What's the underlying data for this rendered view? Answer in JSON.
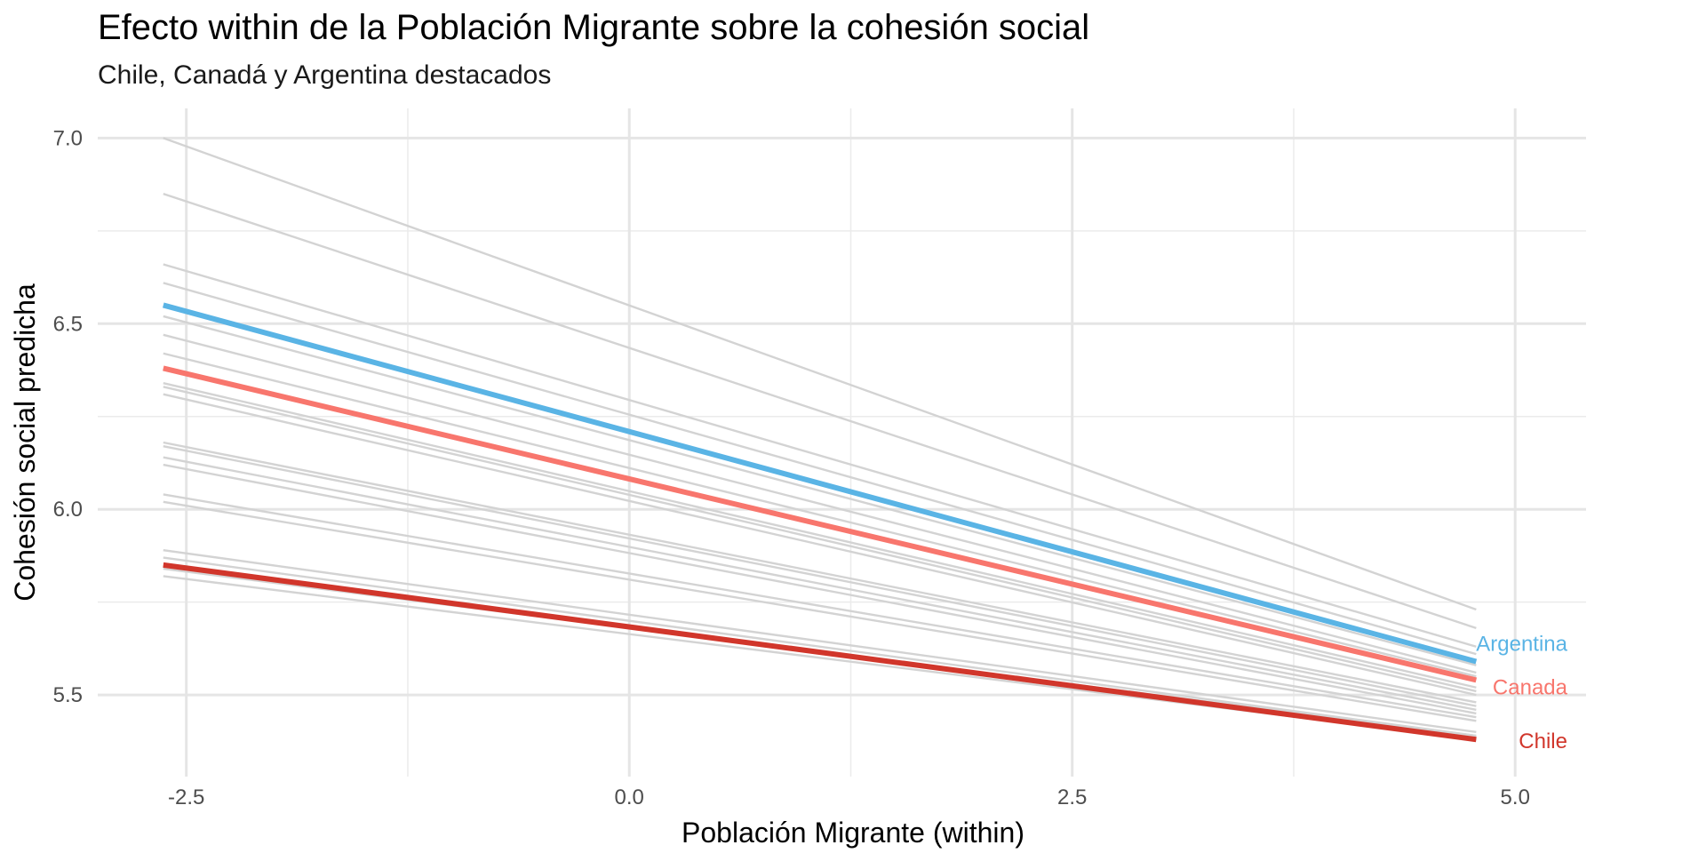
{
  "chart_data": {
    "type": "line",
    "title": "Efecto within de la Población Migrante sobre la cohesión social",
    "subtitle": "Chile, Canadá y Argentina destacados",
    "xlabel": "Población Migrante (within)",
    "ylabel": "Cohesión social predicha",
    "xlim": [
      -3.0,
      5.4
    ],
    "ylim": [
      5.28,
      7.08
    ],
    "x_ticks": [
      -2.5,
      0.0,
      2.5,
      5.0
    ],
    "x_tick_labels": [
      "-2.5",
      "0.0",
      "2.5",
      "5.0"
    ],
    "y_ticks": [
      5.5,
      6.0,
      6.5,
      7.0
    ],
    "y_tick_labels": [
      "5.5",
      "6.0",
      "6.5",
      "7.0"
    ],
    "grid": true,
    "legend": "none (direct labels at line ends)",
    "x": [
      -2.63,
      4.78
    ],
    "background_series_color": "#d3d3d3",
    "background_series": [
      {
        "values": [
          7.0,
          5.73
        ]
      },
      {
        "values": [
          6.85,
          5.68
        ]
      },
      {
        "values": [
          6.66,
          5.63
        ]
      },
      {
        "values": [
          6.61,
          5.61
        ]
      },
      {
        "values": [
          6.52,
          5.58
        ]
      },
      {
        "values": [
          6.47,
          5.56
        ]
      },
      {
        "values": [
          6.42,
          5.55
        ]
      },
      {
        "values": [
          6.34,
          5.52
        ]
      },
      {
        "values": [
          6.33,
          5.51
        ]
      },
      {
        "values": [
          6.31,
          5.5
        ]
      },
      {
        "values": [
          6.18,
          5.48
        ]
      },
      {
        "values": [
          6.17,
          5.47
        ]
      },
      {
        "values": [
          6.14,
          5.46
        ]
      },
      {
        "values": [
          6.12,
          5.45
        ]
      },
      {
        "values": [
          6.04,
          5.44
        ]
      },
      {
        "values": [
          6.02,
          5.43
        ]
      },
      {
        "values": [
          5.89,
          5.4
        ]
      },
      {
        "values": [
          5.87,
          5.39
        ]
      },
      {
        "values": [
          5.84,
          5.39
        ]
      },
      {
        "values": [
          5.82,
          5.38
        ]
      }
    ],
    "series": [
      {
        "name": "Argentina",
        "color": "#5ab4e5",
        "values": [
          6.55,
          5.59
        ]
      },
      {
        "name": "Canada",
        "color": "#f8766d",
        "values": [
          6.38,
          5.54
        ]
      },
      {
        "name": "Chile",
        "color": "#d1362b",
        "values": [
          5.85,
          5.38
        ]
      }
    ]
  }
}
